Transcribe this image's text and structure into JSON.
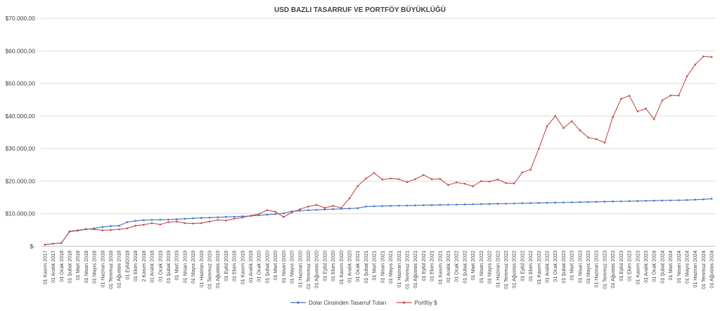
{
  "chart_data": {
    "type": "line",
    "title": "USD BAZLI TASARRUF VE PORTFÖY BÜYÜKLÜĞÜ",
    "ylim": [
      0,
      70000
    ],
    "yticks": [
      "$-",
      "$10.000,00",
      "$20.000,00",
      "$30.000,00",
      "$40.000,00",
      "$50.000,00",
      "$60.000,00",
      "$70.000,00"
    ],
    "grid": "horizontal",
    "legend": "bottom",
    "categories": [
      "01 Kasım 2017",
      "01 Aralık 2017",
      "01 Ocak 2018",
      "01 Şubat 2018",
      "01 Mart 2018",
      "01 Nisan 2018",
      "01 Mayıs 2018",
      "01 Haziran 2018",
      "01 Temmuz 2018",
      "01 Ağustos 2018",
      "01 Eylül2018",
      "01 Ekim 2018",
      "2 Kasım 2018",
      "01 Aralık 2018",
      "01 Ocak 2019",
      "01 Şubat 2019",
      "01 Mart 2019",
      "01 Nisan 2019",
      "01 Mayıs 2019",
      "01 Haziran 2019",
      "01 Temmuz 2019",
      "01 Ağustos 2019",
      "01 Eylül 2019",
      "01 Ekim 2019",
      "01 Kasım 2019",
      "01 Aralık 2019",
      "01 Ocak 2020",
      "01 Şubat 2020",
      "01 Mart 2020",
      "01 Nisan 2020",
      "01 Mayıs 2020",
      "01 Haziran 2020",
      "01 Temmuz 2020",
      "01 Ağustos 2020",
      "01 Eylül 2020",
      "01 Ekim 2020",
      "01 Kasım 2020",
      "01 Aralık 2020",
      "01 Ocak 2021",
      "01 Şubat 2021",
      "01 Mart 2021",
      "01 Nisan 2021",
      "01 Mayıs 2021",
      "01 Haziran 2021",
      "01 Temmuz 2021",
      "01 Ağustos 2021",
      "01 Eylül 2021",
      "01 Ekim 2021",
      "01 Kasım 2021",
      "01 Aralık 2021",
      "01 Ocak 2022",
      "01 Şubat 2022",
      "01 Mart 2022",
      "01 Nisan 2022",
      "01 Mayıs 2022",
      "01 Haziran 2022",
      "01 Temmuz 2022",
      "01 Ağustos 2022",
      "01 Eylül 2022",
      "01 Ekim 2022",
      "01 Kasım 2022",
      "01 Aralık 2022",
      "01 Ocak 2023",
      "01 Şubat 2023",
      "01 Mart 2023",
      "01 Nisan 2023",
      "01 Mayıs 2023",
      "01 Haziran 2023",
      "01 Temmuz 2023",
      "01 Ağustos 2023",
      "01 Eylül 2023",
      "01 Ekim 2023",
      "01 Kasım 2023",
      "01 Aralık 2023",
      "01 Ocak 2024",
      "01 Şubat 2024",
      "01 Mart 2024",
      "01 Nisan 2024",
      "01 Mayıs 2024",
      "01 Haziran 2024",
      "01 Temmuz 2024",
      "01 Ağustos 2024"
    ],
    "series": [
      {
        "name": "Dolar Cinsinden Tasarruf Tutarı",
        "color": "#4472c4",
        "marker": "circle",
        "values": [
          500,
          800,
          1000,
          4500,
          4800,
          5200,
          5500,
          5900,
          6200,
          6300,
          7400,
          7800,
          8000,
          8100,
          8150,
          8200,
          8300,
          8450,
          8600,
          8700,
          8800,
          8900,
          9000,
          9100,
          9200,
          9300,
          9500,
          9700,
          9900,
          10100,
          10700,
          10900,
          11100,
          11200,
          11300,
          11400,
          11500,
          11600,
          11700,
          12200,
          12300,
          12350,
          12400,
          12450,
          12500,
          12550,
          12600,
          12650,
          12700,
          12750,
          12800,
          12850,
          12900,
          12950,
          13000,
          13050,
          13100,
          13150,
          13200,
          13250,
          13300,
          13350,
          13400,
          13450,
          13500,
          13550,
          13600,
          13650,
          13700,
          13750,
          13800,
          13850,
          13900,
          13950,
          14000,
          14050,
          14100,
          14150,
          14200,
          14300,
          14400,
          14600
        ]
      },
      {
        "name": "Portföy $",
        "color": "#c0504d",
        "marker": "circle",
        "values": [
          500,
          800,
          1000,
          4600,
          4900,
          5300,
          5200,
          4900,
          5000,
          5200,
          5500,
          6300,
          6600,
          7100,
          6700,
          7400,
          7600,
          7100,
          7000,
          7100,
          7600,
          8100,
          7900,
          8500,
          8800,
          9400,
          9900,
          11100,
          10600,
          9000,
          10400,
          11400,
          12200,
          12700,
          11800,
          12400,
          11800,
          14700,
          18500,
          20800,
          22500,
          20500,
          20800,
          20600,
          19700,
          20600,
          21900,
          20600,
          20700,
          18800,
          19600,
          19200,
          18400,
          20000,
          19900,
          20500,
          19400,
          19300,
          22700,
          23500,
          30000,
          36800,
          40000,
          36300,
          38400,
          35600,
          33400,
          32900,
          31800,
          39700,
          45300,
          46200,
          41400,
          42300,
          39000,
          44800,
          46300,
          46300,
          52200,
          55800,
          58300,
          58100
        ]
      }
    ]
  }
}
